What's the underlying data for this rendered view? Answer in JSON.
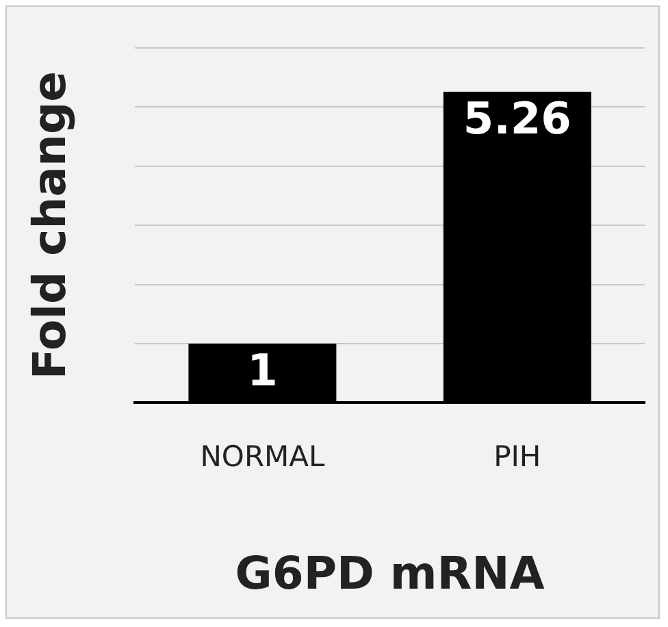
{
  "chart_data": {
    "type": "bar",
    "xlabel": "G6PD mRNA",
    "ylabel": "Fold change",
    "categories": [
      "NORMAL",
      "PIH"
    ],
    "values": [
      1,
      5.26
    ],
    "color": "#000000",
    "ylim": [
      0,
      6
    ],
    "yticks": [
      0,
      {
        "value": 1,
        "label": null
      },
      {
        "value": 2,
        "label": null
      },
      {
        "value": 3,
        "label": null
      },
      {
        "value": 4,
        "label": null
      },
      {
        "value": 5,
        "label": null
      },
      {
        "value": 6,
        "label": null
      }
    ],
    "tick_labels": "x",
    "grid": "y",
    "data_labels": true,
    "legend": false
  }
}
